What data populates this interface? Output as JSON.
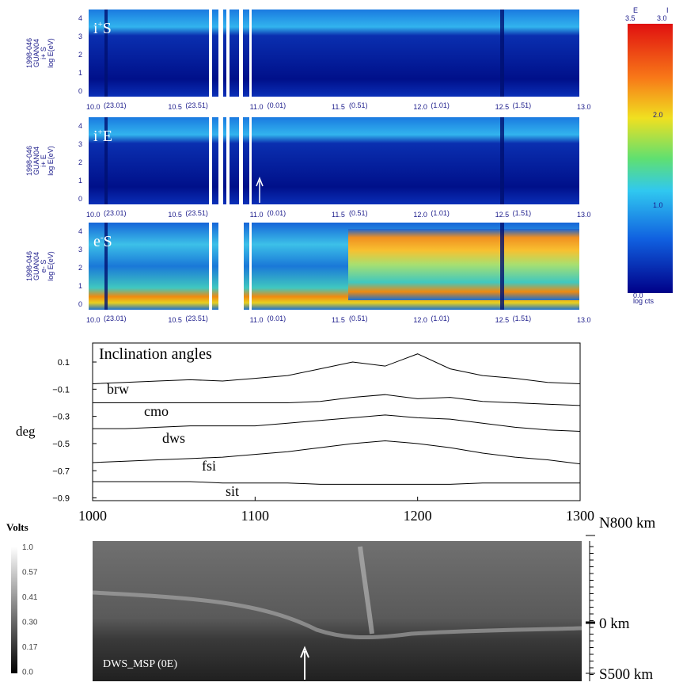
{
  "spectrograms": {
    "panels": [
      {
        "ion": "i",
        "charge": "+",
        "kind": "S",
        "ylabel": [
          "1998-046",
          "GUAN04",
          "i+ S",
          "log E(eV)"
        ]
      },
      {
        "ion": "i",
        "charge": "+",
        "kind": "E",
        "ylabel": [
          "1998-046",
          "GUAN04",
          "i+ E",
          "log E(eV)"
        ]
      },
      {
        "ion": "e",
        "charge": "-",
        "kind": "S",
        "ylabel": [
          "1998-046",
          "GUAN04",
          "e- S",
          "log E(eV)"
        ]
      }
    ],
    "yticks": [
      "0",
      "1",
      "2",
      "3",
      "4"
    ],
    "xticks": [
      "10.0",
      "10.5",
      "11.0",
      "11.5",
      "12.0",
      "12.5",
      "13.0"
    ],
    "xtick_sub": [
      "(23.01)",
      "(23.51)",
      "(0.01)",
      "(0.51)",
      "(1.01)",
      "(1.51)",
      null
    ]
  },
  "colorbar": {
    "head": [
      "E",
      "I"
    ],
    "head_values": [
      "3.5",
      "3.0"
    ],
    "ticks": [
      "2.0",
      "1.0"
    ],
    "bottom": [
      "0.0",
      "log cts"
    ]
  },
  "chart_data": {
    "type": "line",
    "title": "Inclination angles",
    "ylabel": "deg",
    "x": [
      1000,
      1020,
      1040,
      1060,
      1080,
      1100,
      1120,
      1140,
      1160,
      1180,
      1200,
      1220,
      1240,
      1260,
      1280,
      1300
    ],
    "series": [
      {
        "name": "brw",
        "color": "#000000",
        "values": [
          -0.06,
          -0.05,
          -0.04,
          -0.03,
          -0.04,
          -0.02,
          0.0,
          0.05,
          0.1,
          0.07,
          0.16,
          0.05,
          0.0,
          -0.02,
          -0.05,
          -0.06
        ]
      },
      {
        "name": "cmo",
        "color": "#000000",
        "values": [
          -0.2,
          -0.2,
          -0.2,
          -0.2,
          -0.2,
          -0.2,
          -0.2,
          -0.19,
          -0.16,
          -0.14,
          -0.17,
          -0.16,
          -0.19,
          -0.2,
          -0.21,
          -0.22
        ]
      },
      {
        "name": "dws",
        "color": "#000000",
        "values": [
          -0.39,
          -0.39,
          -0.38,
          -0.37,
          -0.37,
          -0.37,
          -0.35,
          -0.33,
          -0.31,
          -0.29,
          -0.31,
          -0.32,
          -0.35,
          -0.38,
          -0.4,
          -0.41
        ]
      },
      {
        "name": "fsi",
        "color": "#000000",
        "values": [
          -0.64,
          -0.63,
          -0.62,
          -0.61,
          -0.6,
          -0.58,
          -0.56,
          -0.53,
          -0.5,
          -0.48,
          -0.5,
          -0.53,
          -0.57,
          -0.6,
          -0.62,
          -0.65
        ]
      },
      {
        "name": "sit",
        "color": "#000000",
        "values": [
          -0.78,
          -0.78,
          -0.78,
          -0.78,
          -0.79,
          -0.79,
          -0.79,
          -0.8,
          -0.8,
          -0.8,
          -0.8,
          -0.8,
          -0.79,
          -0.79,
          -0.79,
          -0.79
        ]
      }
    ],
    "xlim": [
      1000,
      1300
    ],
    "xticks": [
      1000,
      1100,
      1200,
      1300
    ],
    "ylim": [
      -0.92,
      0.24
    ],
    "yticks": [
      {
        "value": 0.1,
        "label": "0.1"
      },
      {
        "value": -0.1,
        "label": "−0.1"
      },
      {
        "value": -0.3,
        "label": "−0.3"
      },
      {
        "value": -0.5,
        "label": "−0.5"
      },
      {
        "value": -0.7,
        "label": "−0.7"
      },
      {
        "value": -0.9,
        "label": "−0.9"
      }
    ],
    "grid": false
  },
  "msp": {
    "title": "Volts",
    "scale": [
      "1.0",
      "0.57",
      "0.41",
      "0.30",
      "0.17",
      "0.0"
    ],
    "label": "DWS_MSP (0E)",
    "range": [
      "N800 km",
      "0 km",
      "S500 km"
    ]
  }
}
